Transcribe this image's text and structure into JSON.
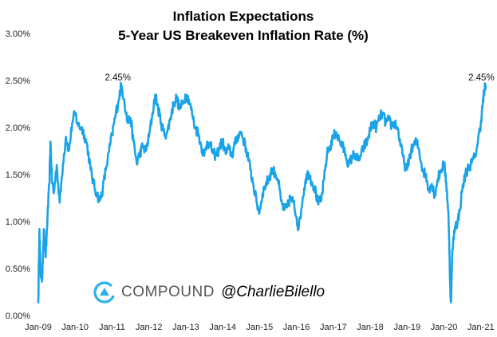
{
  "chart_data": {
    "type": "line",
    "title": "Inflation Expectations",
    "subtitle": "5-Year US Breakeven Inflation Rate (%)",
    "xlabel": "",
    "ylabel": "",
    "ylim": [
      0,
      3
    ],
    "xlim": [
      2009.0,
      2021.2
    ],
    "grid": false,
    "y_ticks": [
      {
        "value": 0.0,
        "label": "0.00%"
      },
      {
        "value": 0.5,
        "label": "0.50%"
      },
      {
        "value": 1.0,
        "label": "1.00%"
      },
      {
        "value": 1.5,
        "label": "1.50%"
      },
      {
        "value": 2.0,
        "label": "2.00%"
      },
      {
        "value": 2.5,
        "label": "2.50%"
      },
      {
        "value": 3.0,
        "label": "3.00%"
      }
    ],
    "x_ticks": [
      {
        "value": 2009,
        "label": "Jan-09"
      },
      {
        "value": 2010,
        "label": "Jan-10"
      },
      {
        "value": 2011,
        "label": "Jan-11"
      },
      {
        "value": 2012,
        "label": "Jan-12"
      },
      {
        "value": 2013,
        "label": "Jan-13"
      },
      {
        "value": 2014,
        "label": "Jan-14"
      },
      {
        "value": 2015,
        "label": "Jan-15"
      },
      {
        "value": 2016,
        "label": "Jan-16"
      },
      {
        "value": 2017,
        "label": "Jan-17"
      },
      {
        "value": 2018,
        "label": "Jan-18"
      },
      {
        "value": 2019,
        "label": "Jan-19"
      },
      {
        "value": 2020,
        "label": "Jan-20"
      },
      {
        "value": 2021,
        "label": "Jan-21"
      }
    ],
    "annotations": [
      {
        "text": "2.45%",
        "x": 2011.2,
        "y": 2.45
      },
      {
        "text": "2.45%",
        "x": 2021.1,
        "y": 2.45
      }
    ],
    "series": [
      {
        "name": "5-Year US Breakeven Inflation Rate",
        "color": "#1aa3e8",
        "points": [
          [
            2009.0,
            0.14
          ],
          [
            2009.03,
            0.92
          ],
          [
            2009.06,
            0.48
          ],
          [
            2009.1,
            0.36
          ],
          [
            2009.15,
            0.92
          ],
          [
            2009.2,
            0.62
          ],
          [
            2009.25,
            1.05
          ],
          [
            2009.3,
            1.4
          ],
          [
            2009.33,
            1.85
          ],
          [
            2009.37,
            1.45
          ],
          [
            2009.42,
            1.3
          ],
          [
            2009.5,
            1.6
          ],
          [
            2009.58,
            1.2
          ],
          [
            2009.67,
            1.62
          ],
          [
            2009.75,
            1.9
          ],
          [
            2009.83,
            1.75
          ],
          [
            2009.92,
            2.05
          ],
          [
            2010.0,
            2.15
          ],
          [
            2010.08,
            2.02
          ],
          [
            2010.17,
            2.0
          ],
          [
            2010.25,
            1.92
          ],
          [
            2010.33,
            1.8
          ],
          [
            2010.42,
            1.55
          ],
          [
            2010.5,
            1.4
          ],
          [
            2010.58,
            1.3
          ],
          [
            2010.67,
            1.22
          ],
          [
            2010.75,
            1.35
          ],
          [
            2010.83,
            1.55
          ],
          [
            2010.92,
            1.75
          ],
          [
            2011.0,
            1.92
          ],
          [
            2011.08,
            2.1
          ],
          [
            2011.17,
            2.28
          ],
          [
            2011.25,
            2.45
          ],
          [
            2011.33,
            2.3
          ],
          [
            2011.42,
            2.05
          ],
          [
            2011.5,
            2.1
          ],
          [
            2011.58,
            1.85
          ],
          [
            2011.67,
            1.62
          ],
          [
            2011.75,
            1.72
          ],
          [
            2011.83,
            1.8
          ],
          [
            2011.92,
            1.75
          ],
          [
            2012.0,
            1.9
          ],
          [
            2012.08,
            2.1
          ],
          [
            2012.17,
            2.35
          ],
          [
            2012.25,
            2.2
          ],
          [
            2012.33,
            2.05
          ],
          [
            2012.42,
            1.92
          ],
          [
            2012.5,
            1.95
          ],
          [
            2012.58,
            2.1
          ],
          [
            2012.67,
            2.25
          ],
          [
            2012.75,
            2.32
          ],
          [
            2012.83,
            2.2
          ],
          [
            2012.92,
            2.25
          ],
          [
            2013.0,
            2.35
          ],
          [
            2013.08,
            2.3
          ],
          [
            2013.17,
            2.15
          ],
          [
            2013.25,
            2.0
          ],
          [
            2013.33,
            1.95
          ],
          [
            2013.42,
            1.8
          ],
          [
            2013.5,
            1.7
          ],
          [
            2013.58,
            1.85
          ],
          [
            2013.67,
            1.8
          ],
          [
            2013.75,
            1.72
          ],
          [
            2013.83,
            1.7
          ],
          [
            2013.92,
            1.8
          ],
          [
            2014.0,
            1.85
          ],
          [
            2014.08,
            1.72
          ],
          [
            2014.17,
            1.78
          ],
          [
            2014.25,
            1.7
          ],
          [
            2014.33,
            1.82
          ],
          [
            2014.42,
            1.92
          ],
          [
            2014.5,
            1.95
          ],
          [
            2014.58,
            1.85
          ],
          [
            2014.67,
            1.72
          ],
          [
            2014.75,
            1.55
          ],
          [
            2014.83,
            1.4
          ],
          [
            2014.92,
            1.2
          ],
          [
            2015.0,
            1.1
          ],
          [
            2015.08,
            1.3
          ],
          [
            2015.17,
            1.4
          ],
          [
            2015.25,
            1.45
          ],
          [
            2015.33,
            1.55
          ],
          [
            2015.42,
            1.52
          ],
          [
            2015.5,
            1.45
          ],
          [
            2015.58,
            1.22
          ],
          [
            2015.67,
            1.12
          ],
          [
            2015.75,
            1.15
          ],
          [
            2015.83,
            1.25
          ],
          [
            2015.92,
            1.2
          ],
          [
            2016.0,
            1.05
          ],
          [
            2016.06,
            0.92
          ],
          [
            2016.17,
            1.25
          ],
          [
            2016.25,
            1.45
          ],
          [
            2016.33,
            1.52
          ],
          [
            2016.42,
            1.42
          ],
          [
            2016.5,
            1.35
          ],
          [
            2016.58,
            1.2
          ],
          [
            2016.67,
            1.22
          ],
          [
            2016.75,
            1.45
          ],
          [
            2016.83,
            1.72
          ],
          [
            2016.92,
            1.8
          ],
          [
            2017.0,
            1.9
          ],
          [
            2017.08,
            1.95
          ],
          [
            2017.17,
            1.85
          ],
          [
            2017.25,
            1.8
          ],
          [
            2017.33,
            1.72
          ],
          [
            2017.42,
            1.6
          ],
          [
            2017.5,
            1.68
          ],
          [
            2017.58,
            1.72
          ],
          [
            2017.67,
            1.65
          ],
          [
            2017.75,
            1.7
          ],
          [
            2017.83,
            1.8
          ],
          [
            2017.92,
            1.85
          ],
          [
            2018.0,
            1.98
          ],
          [
            2018.08,
            2.05
          ],
          [
            2018.17,
            2.0
          ],
          [
            2018.25,
            2.1
          ],
          [
            2018.33,
            2.15
          ],
          [
            2018.42,
            2.05
          ],
          [
            2018.5,
            2.08
          ],
          [
            2018.58,
            2.02
          ],
          [
            2018.67,
            2.05
          ],
          [
            2018.75,
            1.98
          ],
          [
            2018.83,
            1.8
          ],
          [
            2018.92,
            1.62
          ],
          [
            2019.0,
            1.55
          ],
          [
            2019.08,
            1.72
          ],
          [
            2019.17,
            1.8
          ],
          [
            2019.25,
            1.85
          ],
          [
            2019.33,
            1.75
          ],
          [
            2019.42,
            1.55
          ],
          [
            2019.5,
            1.5
          ],
          [
            2019.58,
            1.35
          ],
          [
            2019.67,
            1.4
          ],
          [
            2019.75,
            1.28
          ],
          [
            2019.83,
            1.45
          ],
          [
            2019.92,
            1.55
          ],
          [
            2020.0,
            1.62
          ],
          [
            2020.06,
            1.42
          ],
          [
            2020.12,
            1.1
          ],
          [
            2020.17,
            0.3
          ],
          [
            2020.19,
            0.14
          ],
          [
            2020.23,
            0.7
          ],
          [
            2020.3,
            0.95
          ],
          [
            2020.37,
            1.0
          ],
          [
            2020.42,
            1.1
          ],
          [
            2020.5,
            1.35
          ],
          [
            2020.58,
            1.5
          ],
          [
            2020.67,
            1.58
          ],
          [
            2020.75,
            1.62
          ],
          [
            2020.83,
            1.68
          ],
          [
            2020.92,
            1.85
          ],
          [
            2021.0,
            2.05
          ],
          [
            2021.05,
            2.25
          ],
          [
            2021.1,
            2.4
          ],
          [
            2021.13,
            2.45
          ]
        ]
      }
    ]
  },
  "branding": {
    "name": "COMPOUND",
    "handle": "@CharlieBilello"
  }
}
